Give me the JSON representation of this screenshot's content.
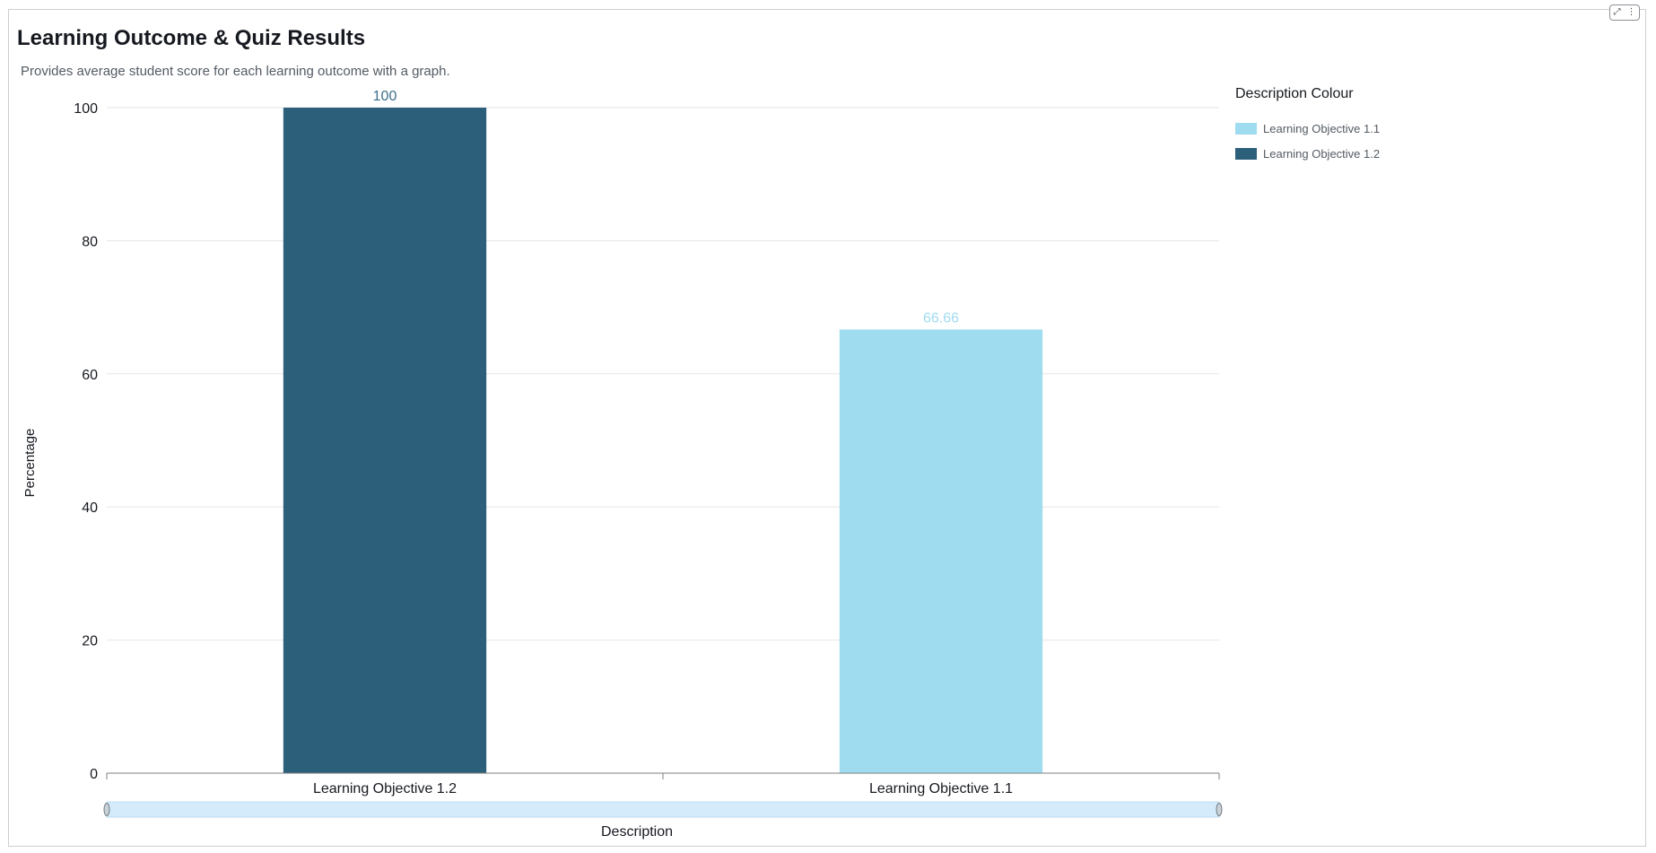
{
  "visual": {
    "title": "Learning Outcome & Quiz Results",
    "subtitle": "Provides average student score for each learning outcome with a graph.",
    "expand_icon": "expand-icon",
    "menu_icon": "more-vertical-icon"
  },
  "legend": {
    "title": "Description Colour",
    "items": [
      {
        "label": "Learning Objective 1.1",
        "color": "#9fdcf0"
      },
      {
        "label": "Learning Objective 1.2",
        "color": "#2b5f7a"
      }
    ]
  },
  "chart_data": {
    "type": "bar",
    "categories": [
      "Learning Objective 1.2",
      "Learning Objective 1.1"
    ],
    "values": [
      100,
      66.66
    ],
    "data_labels": [
      "100",
      "66.66"
    ],
    "colors": [
      "#2b5f7a",
      "#9fdcf0"
    ],
    "label_colors": [
      "#3d6f8c",
      "#9fdcf0"
    ],
    "xlabel": "Description",
    "ylabel": "Percentage",
    "ylim": [
      0,
      100
    ],
    "yticks": [
      0,
      20,
      40,
      60,
      80,
      100
    ],
    "grid": true,
    "legend_position": "right"
  }
}
